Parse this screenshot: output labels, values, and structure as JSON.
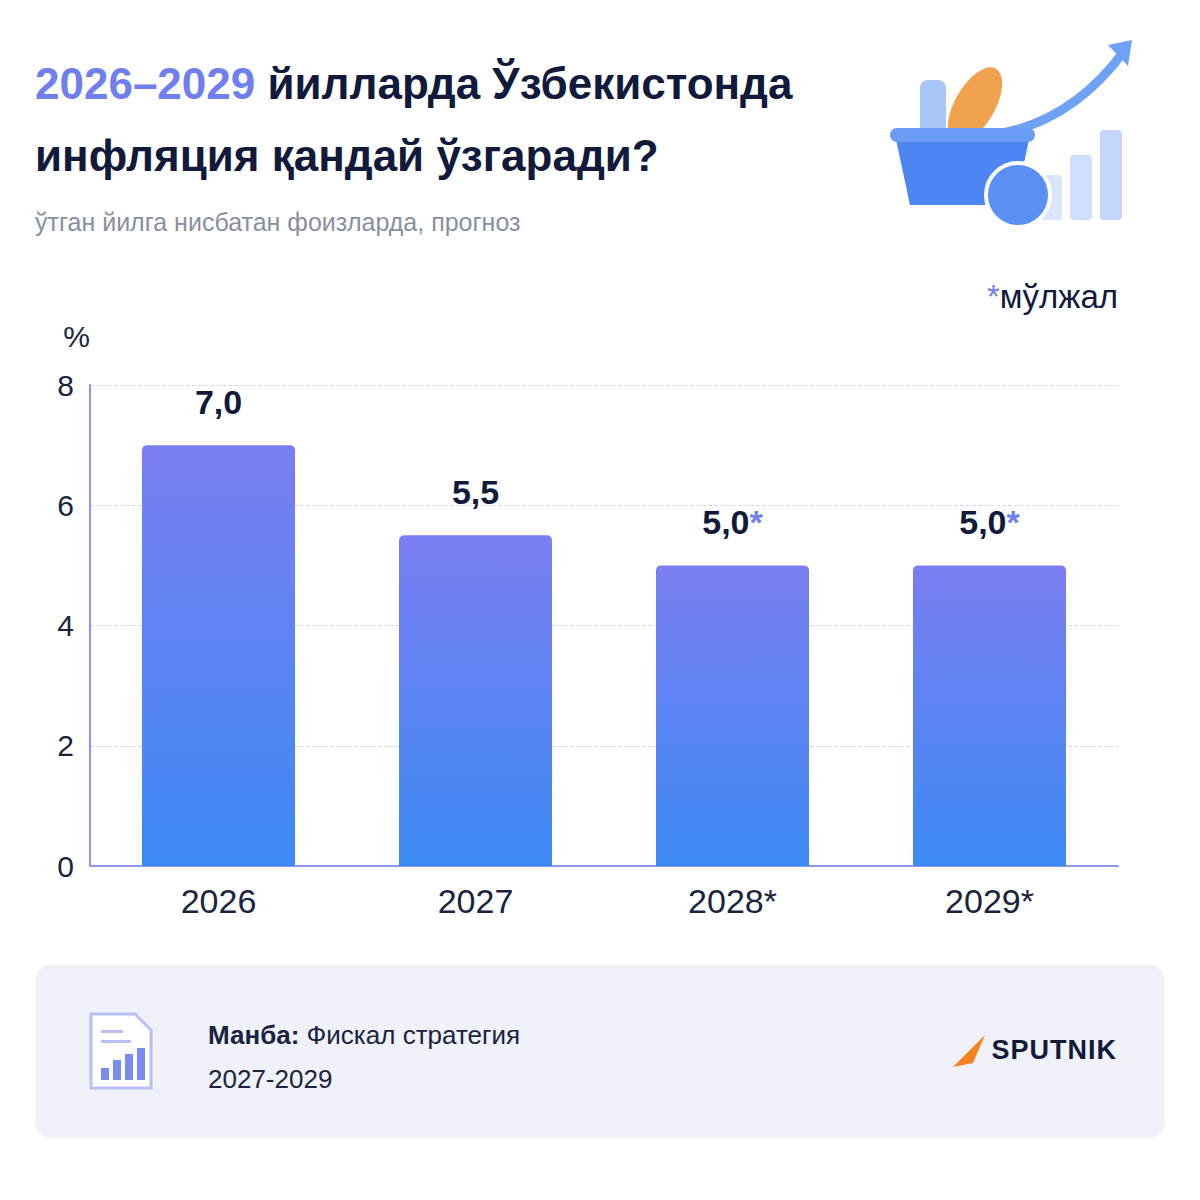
{
  "chart_data": {
    "type": "bar",
    "title": "2026–2029 йилларда Ўзбекистонда инфляция қандай ўзгаради?",
    "subtitle": "ўтган йилга нисбатан фоизларда, прогноз",
    "note": "*мўлжал",
    "y_label": "%",
    "categories": [
      "2026",
      "2027",
      "2028*",
      "2029*"
    ],
    "values": [
      7.0,
      5.5,
      5.0,
      5.0
    ],
    "value_labels": [
      "7,0",
      "5,5",
      "5,0*",
      "5,0*"
    ],
    "color": "#7a7ef2",
    "ylim": [
      0,
      8
    ],
    "yticks": [
      0,
      2,
      4,
      6,
      8
    ],
    "grid": true,
    "data_labels": true,
    "source_label": "Манба:",
    "source": [
      "Фискал стратегия",
      "2027-2029"
    ],
    "brand": "SPUTNIK"
  }
}
